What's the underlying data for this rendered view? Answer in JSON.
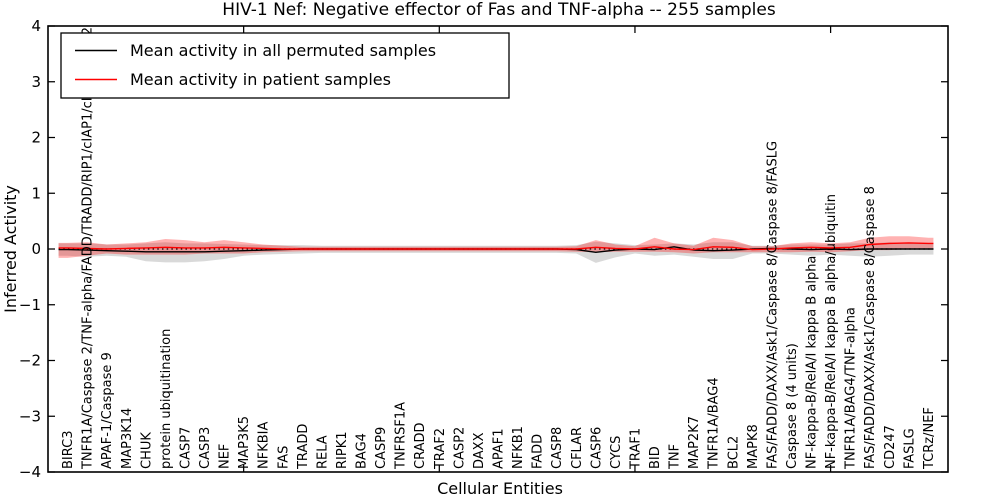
{
  "chart_data": {
    "type": "line",
    "title": "HIV-1 Nef: Negative effector of Fas and TNF-alpha -- 255 samples",
    "xlabel": "Cellular Entities",
    "ylabel": "Inferred Activity",
    "ylim": [
      -4,
      4
    ],
    "yticks": [
      -4,
      -3,
      -2,
      -1,
      0,
      1,
      2,
      3,
      4
    ],
    "ytick_labels": [
      "−4",
      "−3",
      "−2",
      "−1",
      "0",
      "1",
      "2",
      "3",
      "4"
    ],
    "x_inner_ticks": [
      10,
      20,
      30,
      40
    ],
    "grid": false,
    "legend_position": "upper left",
    "background": "#ffffff",
    "zero_line": {
      "y": 0,
      "style": "dotted",
      "color": "#000000"
    },
    "categories": [
      "BIRC3",
      "TNFR1A/Caspase 2/TNF-alpha/FADD/TRADD/RIP1/cIAP1/cIAP2/TRAF2",
      "APAF-1/Caspase 9",
      "MAP3K14",
      "CHUK",
      "protein ubiquitination",
      "CASP7",
      "CASP3",
      "NEF",
      "MAP3K5",
      "NFKBIA",
      "FAS",
      "TRADD",
      "RELA",
      "RIPK1",
      "BAG4",
      "CASP9",
      "TNFRSF1A",
      "CRADD",
      "TRAF2",
      "CASP2",
      "DAXX",
      "APAF1",
      "NFKB1",
      "FADD",
      "CASP8",
      "CFLAR",
      "CASP6",
      "CYCS",
      "TRAF1",
      "BID",
      "TNF",
      "MAP2K7",
      "TNFR1A/BAG4",
      "BCL2",
      "MAPK8",
      "FAS/FADD/DAXX/Ask1/Caspase 8/Caspase 8/FASLG",
      "Caspase 8 (4 units)",
      "NF-kappa-B/RelA/I kappa B alpha",
      "NF-kappa-B/RelA/I kappa B alpha/ubiquitin",
      "TNFR1A/BAG4/TNF-alpha",
      "FAS/FADD/DAXX/Ask1/Caspase 8/Caspase 8",
      "CD247",
      "FASLG",
      "TCRz/NEF"
    ],
    "series": [
      {
        "name": "Mean activity in all permuted samples",
        "color": "#000000",
        "band_color": "rgba(160,160,160,0.40)",
        "values": [
          -0.01,
          -0.02,
          -0.03,
          -0.04,
          -0.05,
          -0.05,
          -0.05,
          -0.05,
          -0.04,
          -0.03,
          -0.02,
          -0.01,
          0,
          0,
          0,
          0,
          0,
          0,
          0,
          0,
          0,
          0,
          0,
          0,
          0,
          0,
          -0.01,
          -0.06,
          -0.02,
          0,
          -0.01,
          0.04,
          -0.02,
          -0.03,
          -0.02,
          0,
          0.01,
          0,
          -0.01,
          0,
          -0.01,
          0,
          0,
          0,
          0
        ],
        "band_hi": [
          0.1,
          0.1,
          0.08,
          0.08,
          0.1,
          0.12,
          0.1,
          0.1,
          0.09,
          0.08,
          0.07,
          0.07,
          0.07,
          0.06,
          0.06,
          0.06,
          0.06,
          0.06,
          0.06,
          0.06,
          0.06,
          0.06,
          0.06,
          0.06,
          0.06,
          0.06,
          0.07,
          0.13,
          0.1,
          0.07,
          0.08,
          0.1,
          0.08,
          0.12,
          0.12,
          0.06,
          0.06,
          0.08,
          0.08,
          0.08,
          0.1,
          0.1,
          0.12,
          0.1,
          0.1
        ],
        "band_lo": [
          -0.12,
          -0.14,
          -0.12,
          -0.14,
          -0.22,
          -0.24,
          -0.24,
          -0.22,
          -0.18,
          -0.12,
          -0.1,
          -0.09,
          -0.08,
          -0.07,
          -0.07,
          -0.07,
          -0.07,
          -0.07,
          -0.07,
          -0.07,
          -0.07,
          -0.07,
          -0.07,
          -0.07,
          -0.07,
          -0.07,
          -0.08,
          -0.25,
          -0.15,
          -0.08,
          -0.12,
          -0.1,
          -0.14,
          -0.18,
          -0.18,
          -0.08,
          -0.08,
          -0.1,
          -0.12,
          -0.1,
          -0.12,
          -0.14,
          -0.12,
          -0.1,
          -0.1
        ]
      },
      {
        "name": "Mean activity in patient samples",
        "color": "#ff0000",
        "band_color": "rgba(255,0,0,0.30)",
        "values": [
          0.02,
          0.01,
          0,
          0.01,
          0.02,
          0.03,
          0.02,
          0.02,
          0.03,
          0.02,
          0.01,
          0,
          0,
          0,
          0,
          0,
          0,
          0,
          0,
          0,
          0,
          0,
          0,
          0,
          0,
          0,
          0,
          0.03,
          0.01,
          0,
          0.04,
          0,
          -0.01,
          0.04,
          0.03,
          -0.01,
          0,
          0.02,
          0.03,
          0.02,
          0.03,
          0.08,
          0.1,
          0.11,
          0.1
        ],
        "band_hi": [
          0.11,
          0.12,
          0.08,
          0.1,
          0.12,
          0.18,
          0.16,
          0.12,
          0.16,
          0.12,
          0.08,
          0.06,
          0.04,
          0.04,
          0.04,
          0.04,
          0.04,
          0.04,
          0.04,
          0.04,
          0.04,
          0.04,
          0.04,
          0.04,
          0.04,
          0.04,
          0.05,
          0.16,
          0.08,
          0.05,
          0.2,
          0.1,
          0.06,
          0.2,
          0.16,
          0.05,
          0.05,
          0.1,
          0.12,
          0.1,
          0.12,
          0.2,
          0.23,
          0.23,
          0.2
        ],
        "band_lo": [
          -0.16,
          -0.12,
          -0.08,
          -0.1,
          -0.1,
          -0.1,
          -0.1,
          -0.08,
          -0.08,
          -0.08,
          -0.06,
          -0.05,
          -0.04,
          -0.04,
          -0.04,
          -0.04,
          -0.04,
          -0.04,
          -0.04,
          -0.04,
          -0.04,
          -0.04,
          -0.04,
          -0.04,
          -0.04,
          -0.04,
          -0.05,
          -0.06,
          -0.05,
          -0.05,
          -0.05,
          -0.06,
          -0.08,
          -0.06,
          -0.06,
          -0.06,
          -0.06,
          -0.06,
          -0.05,
          -0.06,
          -0.04,
          -0.02,
          -0.02,
          0.0,
          0.01
        ]
      }
    ]
  }
}
